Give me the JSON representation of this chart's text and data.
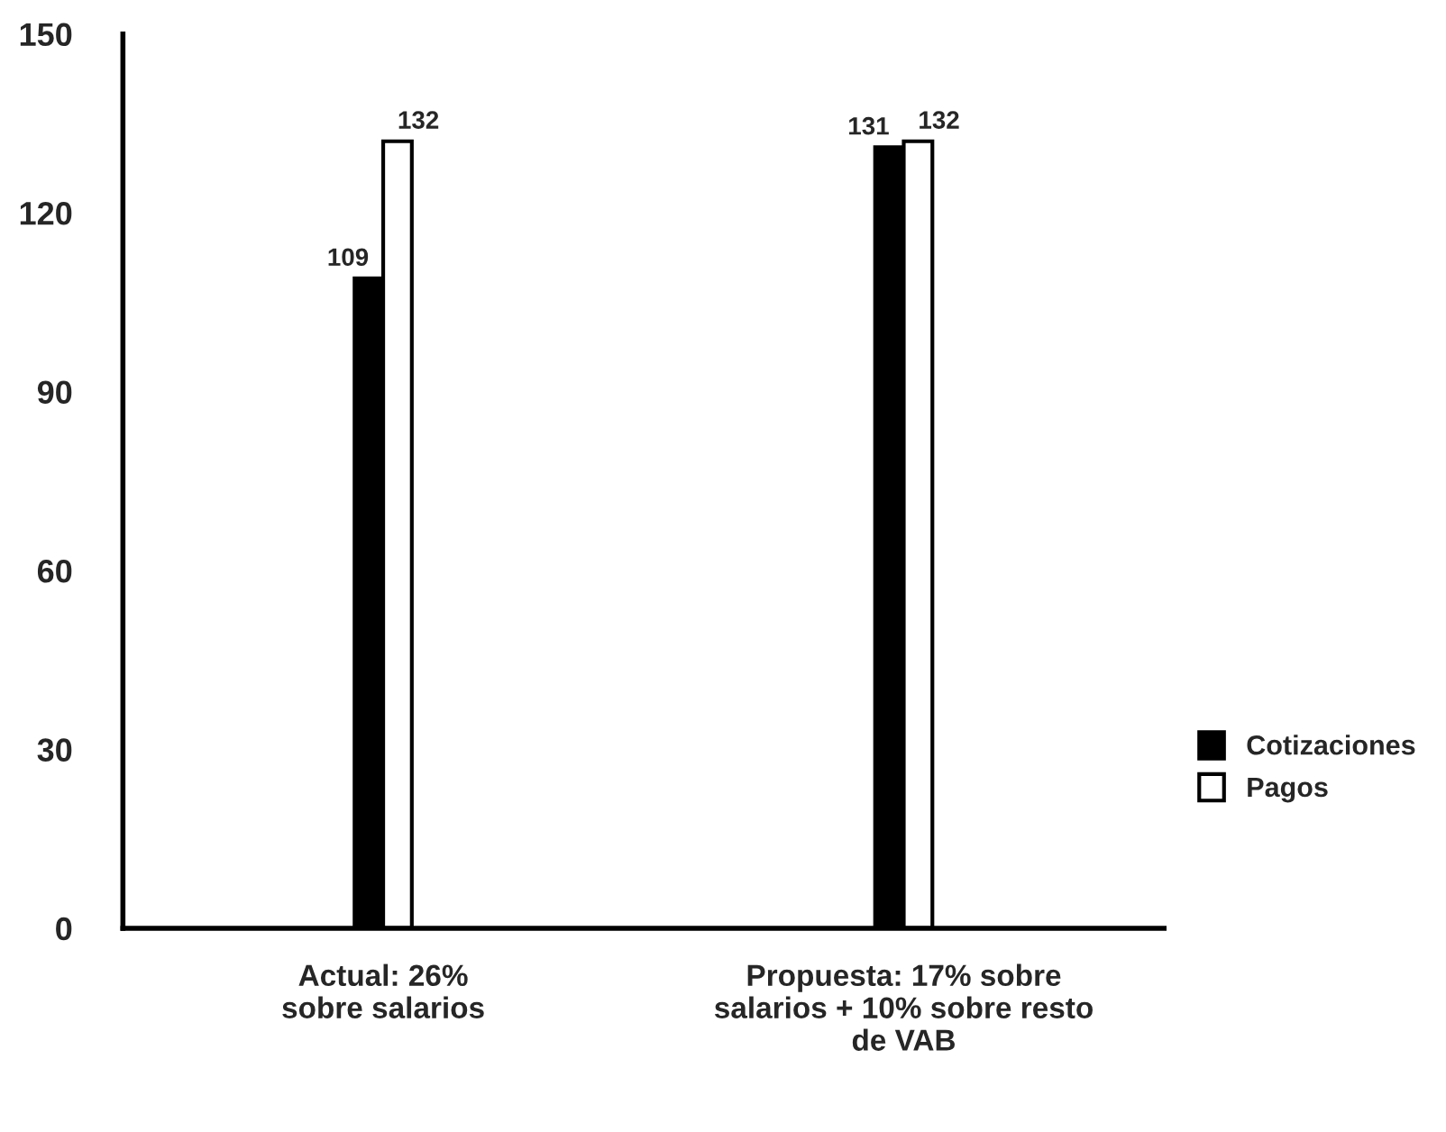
{
  "chart_data": {
    "type": "bar",
    "categories": [
      "Actual: 26%\nsobre salarios",
      "Propuesta: 17% sobre\nsalarios + 10% sobre resto\nde VAB"
    ],
    "series": [
      {
        "name": "Cotizaciones",
        "color": "#000000",
        "values": [
          109,
          131
        ]
      },
      {
        "name": "Pagos",
        "color": "#ffffff",
        "values": [
          132,
          132
        ]
      }
    ],
    "ylim": [
      0,
      150
    ],
    "yticks": [
      0,
      30,
      60,
      90,
      120,
      150
    ],
    "data_labels": true,
    "legend": "right",
    "grid": false
  }
}
